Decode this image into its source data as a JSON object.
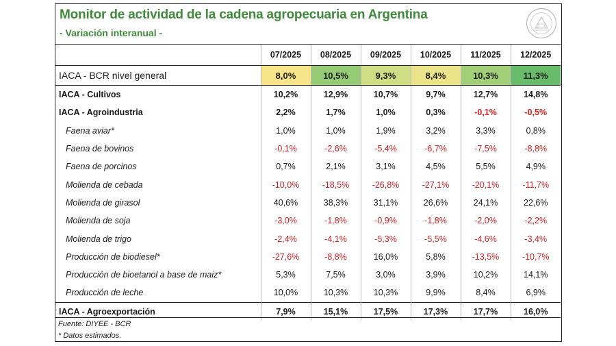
{
  "title": "Monitor de actividad de la cadena agropecuaria en Argentina",
  "subtitle": "- Variación interanual -",
  "seal_icon": "institutional-seal-icon",
  "colors": {
    "title_green": "#3f8a3a",
    "negative_red": "#d42020",
    "heat_low": "#f8e58a",
    "heat_mid": "#c4dc82",
    "heat_high": "#68bb68"
  },
  "chart_data": {
    "type": "table",
    "columns": [
      "07/2025",
      "08/2025",
      "09/2025",
      "10/2025",
      "11/2025",
      "12/2025"
    ],
    "rows": [
      {
        "label": "IACA - BCR nivel general",
        "level": "general",
        "values": [
          "8,0%",
          "10,5%",
          "9,3%",
          "8,4%",
          "10,3%",
          "11,3%"
        ],
        "numeric": [
          8.0,
          10.5,
          9.3,
          8.4,
          10.3,
          11.3
        ]
      },
      {
        "label": "IACA - Cultivos",
        "level": "major",
        "values": [
          "10,2%",
          "12,9%",
          "10,7%",
          "9,7%",
          "12,7%",
          "14,8%"
        ],
        "numeric": [
          10.2,
          12.9,
          10.7,
          9.7,
          12.7,
          14.8
        ]
      },
      {
        "label": "IACA - Agroindustria",
        "level": "major",
        "values": [
          "2,2%",
          "1,7%",
          "1,0%",
          "0,3%",
          "-0,1%",
          "-0,5%"
        ],
        "numeric": [
          2.2,
          1.7,
          1.0,
          0.3,
          -0.1,
          -0.5
        ]
      },
      {
        "label": "Faena aviar*",
        "level": "sub",
        "values": [
          "1,0%",
          "1,0%",
          "1,9%",
          "3,2%",
          "3,3%",
          "0,8%"
        ],
        "numeric": [
          1.0,
          1.0,
          1.9,
          3.2,
          3.3,
          0.8
        ]
      },
      {
        "label": "Faena de bovinos",
        "level": "sub",
        "values": [
          "-0,1%",
          "-2,6%",
          "-5,4%",
          "-6,7%",
          "-7,5%",
          "-8,8%"
        ],
        "numeric": [
          -0.1,
          -2.6,
          -5.4,
          -6.7,
          -7.5,
          -8.8
        ]
      },
      {
        "label": "Faena de porcinos",
        "level": "sub",
        "values": [
          "0,7%",
          "2,1%",
          "3,1%",
          "4,5%",
          "5,5%",
          "4,9%"
        ],
        "numeric": [
          0.7,
          2.1,
          3.1,
          4.5,
          5.5,
          4.9
        ]
      },
      {
        "label": "Molienda de cebada",
        "level": "sub",
        "values": [
          "-10,0%",
          "-18,5%",
          "-26,8%",
          "-27,1%",
          "-20,1%",
          "-11,7%"
        ],
        "numeric": [
          -10.0,
          -18.5,
          -26.8,
          -27.1,
          -20.1,
          -11.7
        ]
      },
      {
        "label": "Molienda de girasol",
        "level": "sub",
        "values": [
          "40,6%",
          "38,3%",
          "31,1%",
          "26,6%",
          "24,1%",
          "22,6%"
        ],
        "numeric": [
          40.6,
          38.3,
          31.1,
          26.6,
          24.1,
          22.6
        ]
      },
      {
        "label": "Molienda de soja",
        "level": "sub",
        "values": [
          "-3,0%",
          "-1,8%",
          "-0,9%",
          "-1,8%",
          "-2,0%",
          "-2,2%"
        ],
        "numeric": [
          -3.0,
          -1.8,
          -0.9,
          -1.8,
          -2.0,
          -2.2
        ]
      },
      {
        "label": "Molienda de trigo",
        "level": "sub",
        "values": [
          "-2,4%",
          "-4,1%",
          "-5,3%",
          "-5,5%",
          "-4,6%",
          "-3,4%"
        ],
        "numeric": [
          -2.4,
          -4.1,
          -5.3,
          -5.5,
          -4.6,
          -3.4
        ]
      },
      {
        "label": "Producción de biodiesel*",
        "level": "sub",
        "values": [
          "-27,6%",
          "-8,8%",
          "16,0%",
          "5,8%",
          "-13,5%",
          "-10,7%"
        ],
        "numeric": [
          -27.6,
          -8.8,
          16.0,
          5.8,
          -13.5,
          -10.7
        ]
      },
      {
        "label": "Producción de bioetanol a base de maiz*",
        "level": "sub",
        "values": [
          "5,3%",
          "7,5%",
          "3,0%",
          "3,9%",
          "10,2%",
          "14,1%"
        ],
        "numeric": [
          5.3,
          7.5,
          3.0,
          3.9,
          10.2,
          14.1
        ]
      },
      {
        "label": "Producción de leche",
        "level": "sub",
        "values": [
          "10,0%",
          "10,3%",
          "10,3%",
          "9,9%",
          "8,4%",
          "6,9%"
        ],
        "numeric": [
          10.0,
          10.3,
          10.3,
          9.9,
          8.4,
          6.9
        ]
      },
      {
        "label": "IACA - Agroexportación",
        "level": "major-sep",
        "values": [
          "7,9%",
          "15,1%",
          "17,5%",
          "17,3%",
          "17,7%",
          "16,0%"
        ],
        "numeric": [
          7.9,
          15.1,
          17.5,
          17.3,
          17.7,
          16.0
        ]
      }
    ]
  },
  "footer": {
    "source": "Fuente: DIYEE - BCR",
    "note": "* Datos estimados."
  }
}
